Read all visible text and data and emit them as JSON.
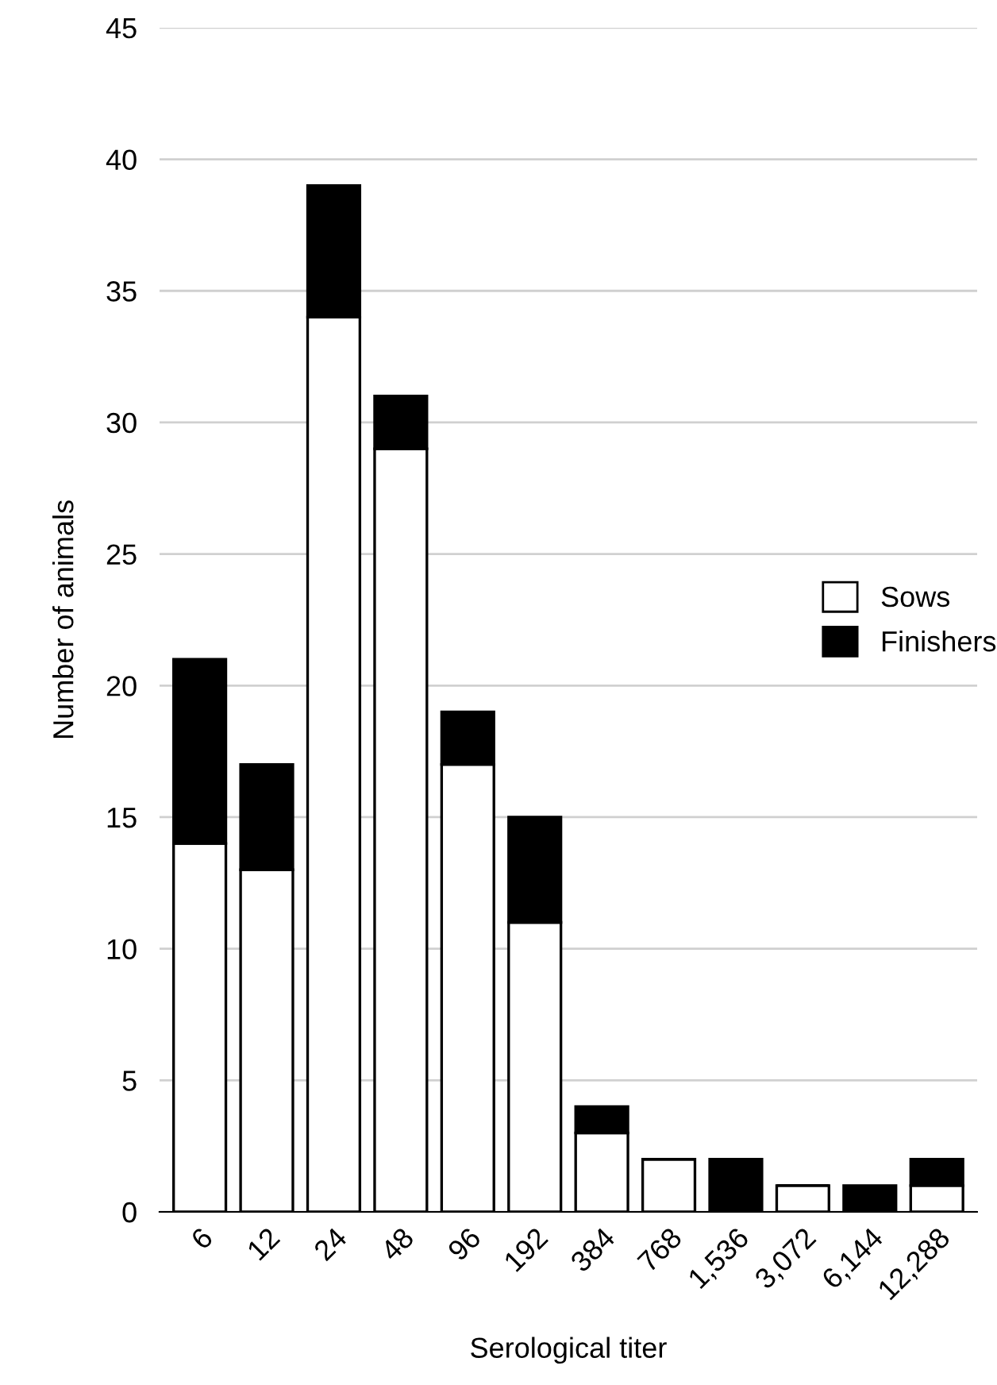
{
  "chart_data": {
    "type": "bar",
    "stacked": true,
    "xlabel": "Serological titer",
    "ylabel": "Number of animals",
    "categories": [
      "6",
      "12",
      "24",
      "48",
      "96",
      "192",
      "384",
      "768",
      "1,536",
      "3,072",
      "6,144",
      "12,288"
    ],
    "series": [
      {
        "name": "Sows",
        "color": "#ffffff",
        "values": [
          14,
          13,
          34,
          29,
          17,
          11,
          3,
          2,
          0,
          1,
          0,
          1
        ]
      },
      {
        "name": "Finishers",
        "color": "#000000",
        "values": [
          7,
          4,
          5,
          2,
          2,
          4,
          1,
          0,
          2,
          0,
          1,
          1
        ]
      }
    ],
    "ylim": [
      0,
      45
    ],
    "yticks": [
      0,
      5,
      10,
      15,
      20,
      25,
      30,
      35,
      40,
      45
    ],
    "grid": "y",
    "legend": "right"
  }
}
